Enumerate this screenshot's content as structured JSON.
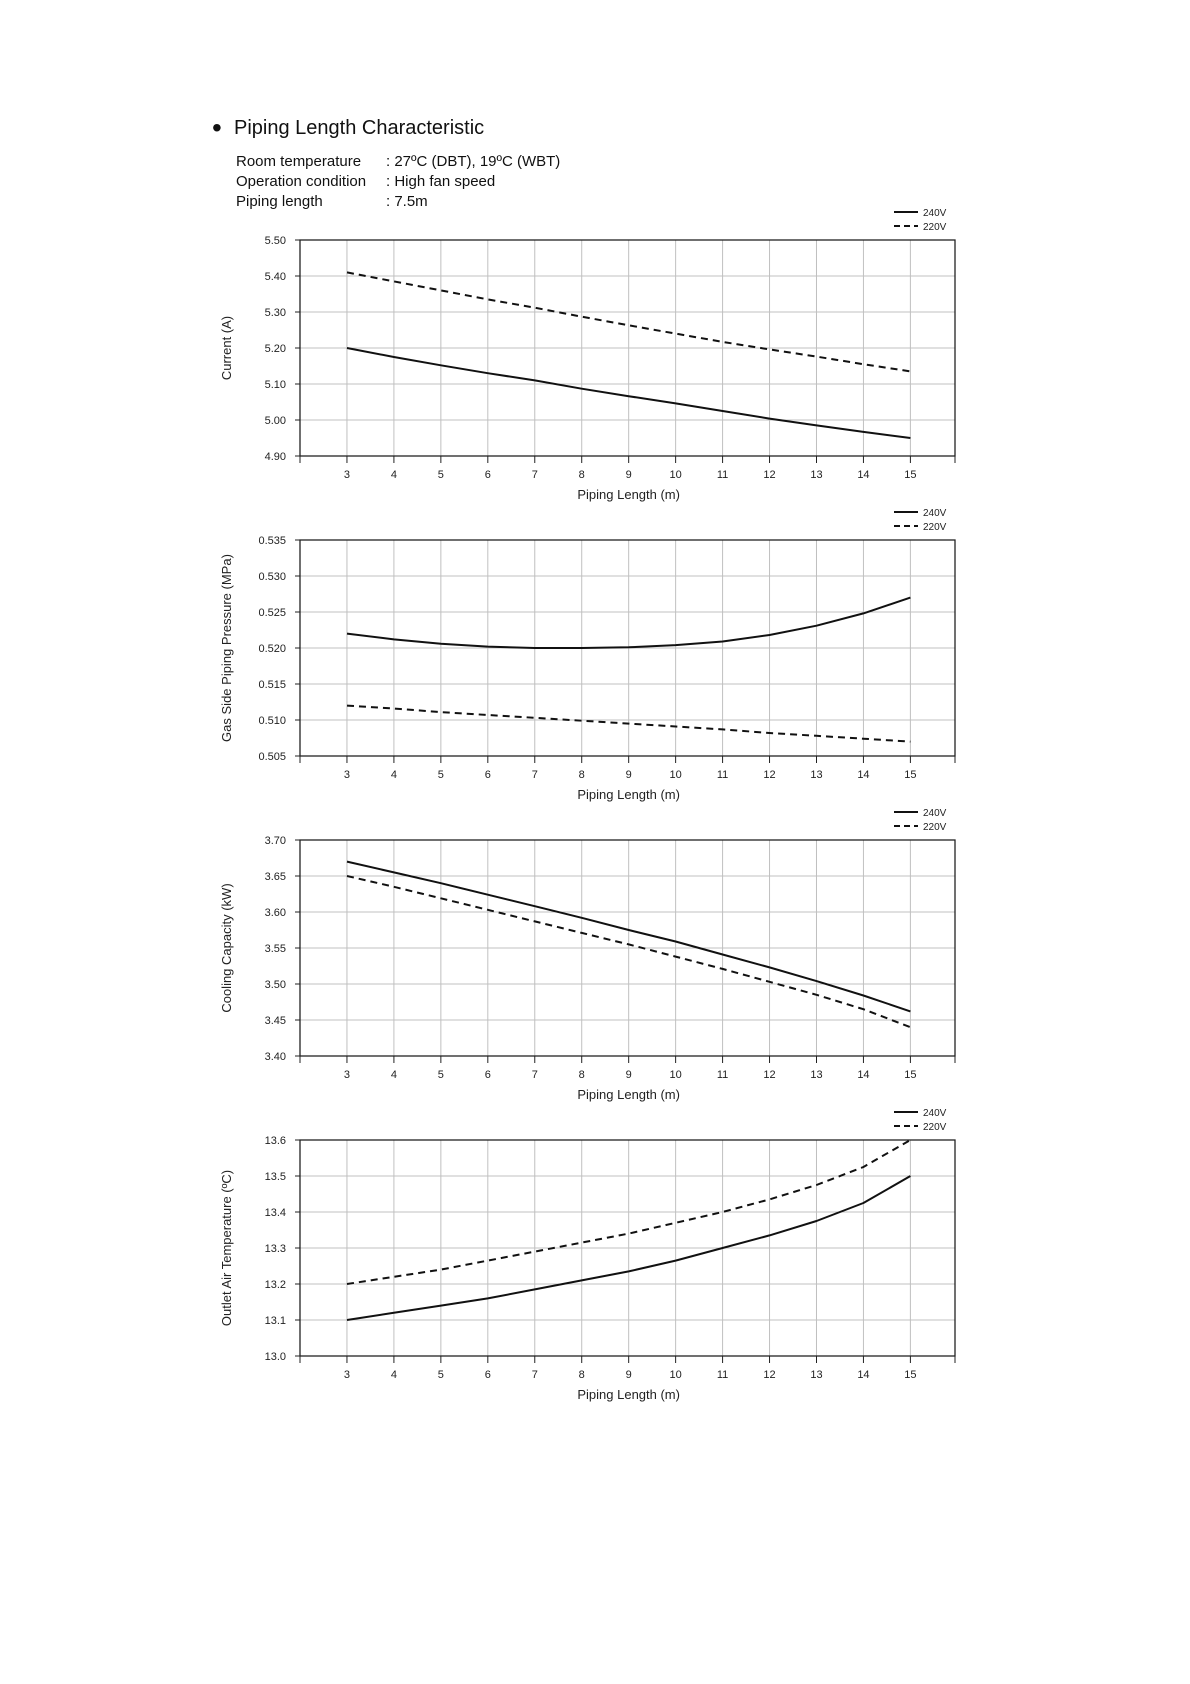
{
  "header": {
    "bullet": "•",
    "title": "Piping Length Characteristic",
    "conditions": [
      {
        "label": "Room temperature",
        "value": ": 27ºC (DBT), 19ºC (WBT)"
      },
      {
        "label": "Operation condition",
        "value": ": High fan speed"
      },
      {
        "label": "Piping length",
        "value": ": 7.5m"
      }
    ]
  },
  "colors": {
    "line": "#111111",
    "grid": "#c0c0c0",
    "frame": "#222222"
  },
  "chart_data": [
    {
      "type": "line",
      "title": "",
      "xlabel": "Piping Length (m)",
      "ylabel": "Current (A)",
      "x": [
        3,
        4,
        5,
        6,
        7,
        8,
        9,
        10,
        11,
        12,
        13,
        14,
        15
      ],
      "ylim": [
        4.9,
        5.5
      ],
      "yticks": [
        "5.50",
        "5.40",
        "5.30",
        "5.20",
        "5.10",
        "5.00",
        "4.90"
      ],
      "grid": true,
      "legend_position": "top-right",
      "series": [
        {
          "name": "240V",
          "style": "solid",
          "values": [
            5.2,
            5.175,
            5.152,
            5.13,
            5.11,
            5.087,
            5.066,
            5.046,
            5.025,
            5.004,
            4.985,
            4.967,
            4.95
          ]
        },
        {
          "name": "220V",
          "style": "dashed",
          "values": [
            5.41,
            5.385,
            5.36,
            5.335,
            5.312,
            5.287,
            5.263,
            5.24,
            5.217,
            5.196,
            5.176,
            5.155,
            5.135
          ]
        }
      ]
    },
    {
      "type": "line",
      "title": "",
      "xlabel": "Piping Length (m)",
      "ylabel": "Gas Side Piping Pressure (MPa)",
      "x": [
        3,
        4,
        5,
        6,
        7,
        8,
        9,
        10,
        11,
        12,
        13,
        14,
        15
      ],
      "ylim": [
        0.505,
        0.535
      ],
      "yticks": [
        "0.535",
        "0.530",
        "0.525",
        "0.520",
        "0.515",
        "0.510",
        "0.505"
      ],
      "grid": true,
      "legend_position": "top-right",
      "series": [
        {
          "name": "240V",
          "style": "solid",
          "values": [
            0.522,
            0.5212,
            0.5206,
            0.5202,
            0.52,
            0.52,
            0.5201,
            0.5204,
            0.5209,
            0.5218,
            0.5231,
            0.5248,
            0.527
          ]
        },
        {
          "name": "220V",
          "style": "dashed",
          "values": [
            0.512,
            0.5116,
            0.5111,
            0.5107,
            0.5103,
            0.5099,
            0.5095,
            0.5091,
            0.5087,
            0.5082,
            0.5078,
            0.5074,
            0.507
          ]
        }
      ]
    },
    {
      "type": "line",
      "title": "",
      "xlabel": "Piping Length (m)",
      "ylabel": "Cooling Capacity (kW)",
      "x": [
        3,
        4,
        5,
        6,
        7,
        8,
        9,
        10,
        11,
        12,
        13,
        14,
        15
      ],
      "ylim": [
        3.4,
        3.7
      ],
      "yticks": [
        "3.70",
        "3.65",
        "3.60",
        "3.55",
        "3.50",
        "3.45",
        "3.40"
      ],
      "grid": true,
      "legend_position": "top-right",
      "series": [
        {
          "name": "240V",
          "style": "solid",
          "values": [
            3.67,
            3.655,
            3.64,
            3.624,
            3.608,
            3.592,
            3.575,
            3.559,
            3.541,
            3.523,
            3.504,
            3.484,
            3.462
          ]
        },
        {
          "name": "220V",
          "style": "dashed",
          "values": [
            3.65,
            3.635,
            3.619,
            3.603,
            3.587,
            3.571,
            3.555,
            3.538,
            3.521,
            3.503,
            3.485,
            3.465,
            3.44
          ]
        }
      ]
    },
    {
      "type": "line",
      "title": "",
      "xlabel": "Piping Length (m)",
      "ylabel": "Outlet Air Temperature (ºC)",
      "x": [
        3,
        4,
        5,
        6,
        7,
        8,
        9,
        10,
        11,
        12,
        13,
        14,
        15
      ],
      "ylim": [
        13.0,
        13.6
      ],
      "yticks": [
        "13.6",
        "13.5",
        "13.4",
        "13.3",
        "13.2",
        "13.1",
        "13.0"
      ],
      "grid": true,
      "legend_position": "top-right",
      "series": [
        {
          "name": "240V",
          "style": "solid",
          "values": [
            13.1,
            13.12,
            13.14,
            13.16,
            13.185,
            13.21,
            13.235,
            13.265,
            13.3,
            13.335,
            13.375,
            13.425,
            13.5
          ]
        },
        {
          "name": "220V",
          "style": "dashed",
          "values": [
            13.2,
            13.22,
            13.24,
            13.265,
            13.29,
            13.315,
            13.34,
            13.37,
            13.4,
            13.435,
            13.475,
            13.525,
            13.6
          ]
        }
      ]
    }
  ]
}
